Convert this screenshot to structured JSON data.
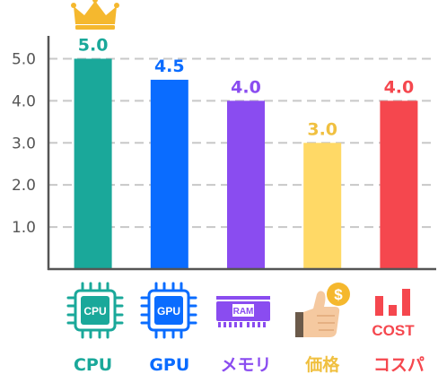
{
  "chart_data": {
    "type": "bar",
    "title": "",
    "xlabel": "",
    "ylabel": "",
    "ylim": [
      0,
      5.5
    ],
    "yticks": [
      "1.0",
      "2.0",
      "3.0",
      "4.0",
      "5.0"
    ],
    "ytick_values": [
      1,
      2,
      3,
      4,
      5
    ],
    "grid": true,
    "categories": [
      "CPU",
      "GPU",
      "メモリ",
      "価格",
      "コスパ"
    ],
    "values": [
      5.0,
      4.5,
      4.0,
      3.0,
      4.0
    ],
    "value_labels": [
      "5.0",
      "4.5",
      "4.0",
      "3.0",
      "4.0"
    ],
    "colors": [
      "#1aa89a",
      "#0a6cff",
      "#8a4cf0",
      "#ffd966",
      "#f5474e"
    ],
    "label_colors": [
      "#1aa89a",
      "#0a6cff",
      "#8a4cf0",
      "#f0c040",
      "#f5474e"
    ],
    "icons": [
      "cpu-chip-icon",
      "gpu-chip-icon",
      "ram-memory-icon",
      "thumbs-up-coin-icon",
      "cost-bars-icon"
    ],
    "icon_texts": {
      "cpu": "CPU",
      "gpu": "GPU",
      "ram": "RAM",
      "cost": "COST",
      "coin": "$"
    },
    "top_marker_icon": "crown-icon"
  }
}
